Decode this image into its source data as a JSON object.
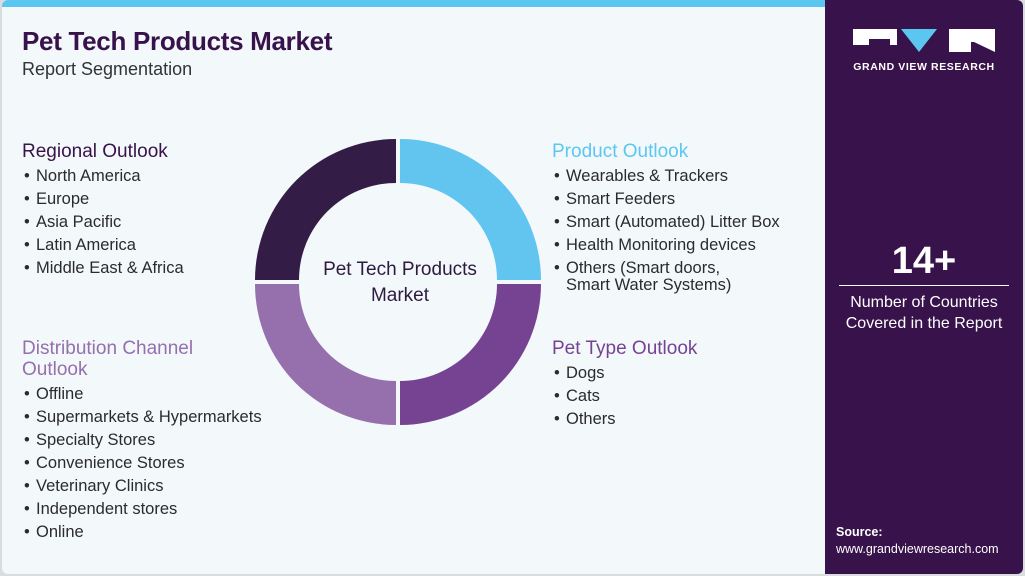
{
  "header": {
    "title": "Pet Tech Products Market",
    "subtitle": "Report Segmentation"
  },
  "center_label": {
    "line1": "Pet Tech Products",
    "line2": "Market"
  },
  "colors": {
    "brand_dark": "#38124a",
    "accent_blue": "#5bc7f1",
    "regional": "#331d47",
    "product": "#62c5ef",
    "pet_type": "#764393",
    "distribution": "#9570ad"
  },
  "sections": {
    "regional": {
      "title": "Regional Outlook",
      "items": [
        "North America",
        "Europe",
        "Asia Pacific",
        "Latin America",
        "Middle East & Africa"
      ]
    },
    "product": {
      "title": "Product Outlook",
      "items": [
        "Wearables & Trackers",
        "Smart Feeders",
        "Smart (Automated) Litter Box",
        "Health Monitoring devices",
        "Others (Smart doors,"
      ],
      "item5_line2": "Smart Water Systems)"
    },
    "pet_type": {
      "title": "Pet Type Outlook",
      "items": [
        "Dogs",
        "Cats",
        "Others"
      ]
    },
    "distribution": {
      "title_line1": "Distribution Channel",
      "title_line2": "Outlook",
      "items": [
        "Offline",
        "Supermarkets & Hypermarkets",
        "Specialty Stores",
        "Convenience Stores",
        "Veterinary Clinics",
        "Independent stores",
        "Online"
      ]
    }
  },
  "sidebar": {
    "logo_text": "GRAND VIEW RESEARCH",
    "stat_value": "14+",
    "stat_label_line1": "Number of Countries",
    "stat_label_line2": "Covered in the Report",
    "source_label": "Source:",
    "source_url": "www.grandviewresearch.com"
  }
}
